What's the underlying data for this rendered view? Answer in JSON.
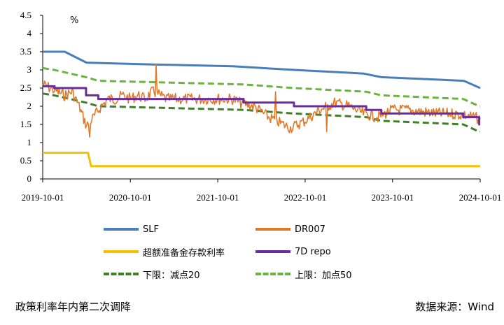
{
  "chart_data": {
    "type": "line",
    "unit_label": "%",
    "ylim": [
      0,
      4.5
    ],
    "y_ticks": [
      "0",
      "0.5",
      "1",
      "1.5",
      "2",
      "2.5",
      "3",
      "3.5",
      "4",
      "4.5"
    ],
    "x_range": [
      "2019-10-01",
      "2024-10-01"
    ],
    "x_ticks": [
      "2019-10-01",
      "2020-10-01",
      "2021-10-01",
      "2022-10-01",
      "2023-10-01",
      "2024-10-01"
    ],
    "grid": false,
    "legend_position": "bottom",
    "series": [
      {
        "name": "SLF",
        "color": "#4a7ebb",
        "style": "solid",
        "points": [
          [
            "2019-10-01",
            3.5
          ],
          [
            "2020-01-01",
            3.5
          ],
          [
            "2020-04-01",
            3.2
          ],
          [
            "2021-01-01",
            3.15
          ],
          [
            "2021-12-01",
            3.1
          ],
          [
            "2022-08-15",
            3.0
          ],
          [
            "2023-06-01",
            2.9
          ],
          [
            "2023-08-15",
            2.8
          ],
          [
            "2024-07-25",
            2.7
          ],
          [
            "2024-10-01",
            2.5
          ]
        ]
      },
      {
        "name": "DR007",
        "color": "#e07a2a",
        "style": "noisy",
        "points": [
          [
            "2019-10-01",
            2.6
          ],
          [
            "2019-11-01",
            2.5
          ],
          [
            "2019-12-01",
            2.4
          ],
          [
            "2020-01-01",
            2.3
          ],
          [
            "2020-02-01",
            2.4
          ],
          [
            "2020-03-01",
            2.0
          ],
          [
            "2020-04-01",
            1.45
          ],
          [
            "2020-05-01",
            1.7
          ],
          [
            "2020-06-01",
            2.0
          ],
          [
            "2020-07-01",
            2.2
          ],
          [
            "2020-08-01",
            2.2
          ],
          [
            "2020-09-01",
            2.3
          ],
          [
            "2020-10-01",
            2.2
          ],
          [
            "2020-11-01",
            2.3
          ],
          [
            "2020-12-01",
            2.2
          ],
          [
            "2021-01-01",
            2.4
          ],
          [
            "2021-02-01",
            2.3
          ],
          [
            "2021-03-01",
            2.2
          ],
          [
            "2021-06-01",
            2.2
          ],
          [
            "2021-09-01",
            2.2
          ],
          [
            "2021-12-01",
            2.2
          ],
          [
            "2022-01-01",
            2.1
          ],
          [
            "2022-03-01",
            2.0
          ],
          [
            "2022-05-01",
            1.7
          ],
          [
            "2022-08-01",
            1.4
          ],
          [
            "2022-10-01",
            1.6
          ],
          [
            "2022-12-01",
            1.9
          ],
          [
            "2023-02-01",
            2.1
          ],
          [
            "2023-04-01",
            2.0
          ],
          [
            "2023-06-01",
            1.8
          ],
          [
            "2023-08-01",
            1.7
          ],
          [
            "2023-10-01",
            1.9
          ],
          [
            "2023-12-01",
            1.9
          ],
          [
            "2024-02-01",
            1.85
          ],
          [
            "2024-04-01",
            1.8
          ],
          [
            "2024-06-01",
            1.8
          ],
          [
            "2024-08-01",
            1.75
          ],
          [
            "2024-10-01",
            1.65
          ]
        ],
        "spikes": [
          [
            "2021-01-15",
            3.15
          ],
          [
            "2020-04-15",
            1.15
          ],
          [
            "2022-06-01",
            2.4
          ],
          [
            "2023-01-01",
            1.3
          ]
        ]
      },
      {
        "name": "超额准备金存款利率",
        "color": "#f5c000",
        "style": "solid",
        "points": [
          [
            "2019-10-01",
            0.72
          ],
          [
            "2020-04-07",
            0.72
          ],
          [
            "2020-04-20",
            0.35
          ],
          [
            "2024-10-01",
            0.35
          ]
        ]
      },
      {
        "name": "7D repo",
        "color": "#6a2c9e",
        "style": "solid",
        "points": [
          [
            "2019-10-01",
            2.55
          ],
          [
            "2019-11-18",
            2.55
          ],
          [
            "2019-11-18",
            2.5
          ],
          [
            "2020-03-30",
            2.5
          ],
          [
            "2020-03-30",
            2.3
          ],
          [
            "2020-05-20",
            2.3
          ],
          [
            "2020-05-20",
            2.2
          ],
          [
            "2022-01-17",
            2.2
          ],
          [
            "2022-01-17",
            2.1
          ],
          [
            "2022-08-15",
            2.1
          ],
          [
            "2022-08-15",
            2.0
          ],
          [
            "2023-06-13",
            2.0
          ],
          [
            "2023-06-13",
            1.9
          ],
          [
            "2023-08-15",
            1.9
          ],
          [
            "2023-08-15",
            1.8
          ],
          [
            "2024-07-22",
            1.8
          ],
          [
            "2024-07-22",
            1.7
          ],
          [
            "2024-09-27",
            1.7
          ],
          [
            "2024-09-27",
            1.5
          ],
          [
            "2024-10-01",
            1.5
          ]
        ]
      },
      {
        "name": "下限：减点20",
        "color": "#3f7f2a",
        "style": "dashed",
        "points": [
          [
            "2019-10-01",
            2.35
          ],
          [
            "2019-11-18",
            2.3
          ],
          [
            "2020-03-30",
            2.1
          ],
          [
            "2020-05-20",
            2.0
          ],
          [
            "2022-01-17",
            1.9
          ],
          [
            "2022-08-15",
            1.8
          ],
          [
            "2023-06-13",
            1.7
          ],
          [
            "2023-08-15",
            1.6
          ],
          [
            "2024-07-22",
            1.5
          ],
          [
            "2024-09-27",
            1.3
          ],
          [
            "2024-10-01",
            1.3
          ]
        ]
      },
      {
        "name": "上限：加点50",
        "color": "#6cb33f",
        "style": "dashed",
        "points": [
          [
            "2019-10-01",
            3.05
          ],
          [
            "2019-11-18",
            3.0
          ],
          [
            "2020-03-30",
            2.8
          ],
          [
            "2020-05-20",
            2.7
          ],
          [
            "2022-01-17",
            2.6
          ],
          [
            "2022-08-15",
            2.5
          ],
          [
            "2023-06-13",
            2.4
          ],
          [
            "2023-08-15",
            2.3
          ],
          [
            "2024-07-22",
            2.2
          ],
          [
            "2024-09-27",
            2.0
          ],
          [
            "2024-10-01",
            2.0
          ]
        ]
      }
    ]
  },
  "footer": {
    "left_note": "政策利率年内第二次调降",
    "source": "数据来源：Wind"
  }
}
